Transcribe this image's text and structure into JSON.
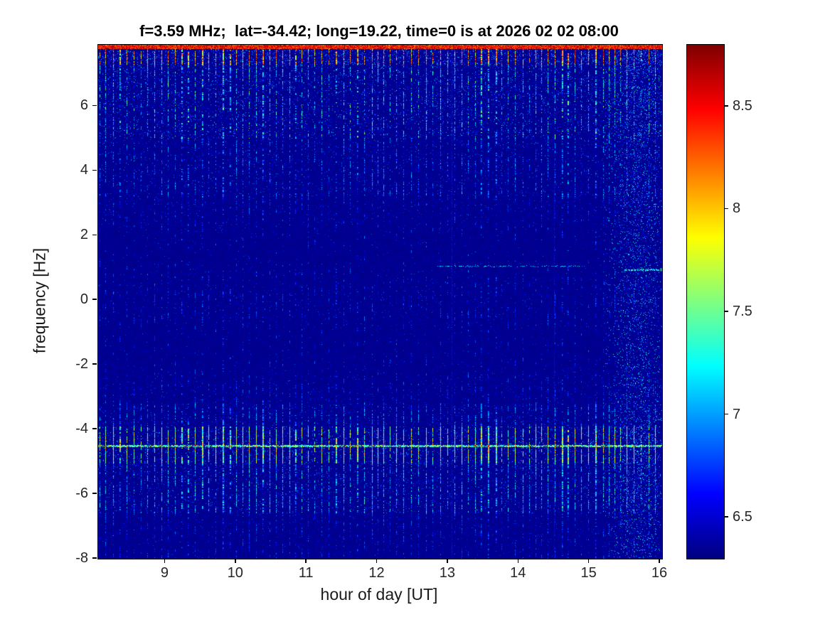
{
  "chart_data": {
    "type": "heatmap",
    "title": "f=3.59 MHz;  lat=-34.42; long=19.22, time=0 is at 2026 02 02 08:00",
    "xlabel": "hour of day [UT]",
    "ylabel": "frequency [Hz]",
    "colormap": "jet",
    "colorbar_position": "right",
    "xlim": [
      8.05,
      16.03
    ],
    "ylim": [
      -8,
      7.9
    ],
    "clim": [
      6.3,
      8.8
    ],
    "x_ticks": [
      9,
      10,
      11,
      12,
      13,
      14,
      15,
      16
    ],
    "y_ticks": [
      -8,
      -6,
      -4,
      -2,
      0,
      2,
      4,
      6
    ],
    "colorbar_ticks": [
      6.5,
      7,
      7.5,
      8,
      8.5
    ],
    "seed": 42,
    "stripes": {
      "period_hours": 0.095,
      "jitter": 0.3,
      "start_offset": 0.02,
      "wide_prob": 0.18
    },
    "bands": [
      {
        "f_min": 7.76,
        "f_max": 8.0,
        "solid": true,
        "stripe_prob": 1.0,
        "v_lo": 8.15,
        "v_hi": 8.8,
        "speckle_p": 0.0,
        "speckle_v": 6.5
      },
      {
        "f_min": 7.28,
        "f_max": 7.76,
        "solid": false,
        "stripe_prob": 0.92,
        "v_lo": 7.55,
        "v_hi": 8.85,
        "speckle_p": 0.18,
        "speckle_v": 7.2
      },
      {
        "f_min": 5.0,
        "f_max": 7.28,
        "solid": false,
        "stripe_prob": 0.68,
        "v_lo": 6.6,
        "v_hi": 7.75,
        "speckle_p": 0.09,
        "speckle_v": 7.1,
        "taper": true
      },
      {
        "f_min": 3.2,
        "f_max": 5.0,
        "solid": false,
        "stripe_prob": 0.42,
        "v_lo": 6.5,
        "v_hi": 7.25,
        "speckle_p": 0.05,
        "speckle_v": 6.95
      },
      {
        "f_min": -3.2,
        "f_max": 3.2,
        "solid": false,
        "stripe_prob": 0.24,
        "v_lo": 6.45,
        "v_hi": 7.0,
        "speckle_p": 0.025,
        "speckle_v": 6.85,
        "modulate": true
      },
      {
        "f_min": -3.9,
        "f_max": -3.2,
        "solid": false,
        "stripe_prob": 0.5,
        "v_lo": 6.55,
        "v_hi": 7.3,
        "speckle_p": 0.05,
        "speckle_v": 6.9
      },
      {
        "f_min": -5.05,
        "f_max": -3.9,
        "solid": false,
        "stripe_prob": 0.88,
        "v_lo": 7.1,
        "v_hi": 8.55,
        "speckle_p": 0.09,
        "speckle_v": 7.2,
        "envelope": true
      },
      {
        "f_min": -6.6,
        "f_max": -5.05,
        "solid": false,
        "stripe_prob": 0.62,
        "v_lo": 6.6,
        "v_hi": 7.55,
        "speckle_p": 0.07,
        "speckle_v": 7.0
      },
      {
        "f_min": -8.0,
        "f_max": -6.6,
        "solid": false,
        "stripe_prob": 0.3,
        "v_lo": 6.45,
        "v_hi": 7.0,
        "speckle_p": 0.03,
        "speckle_v": 6.8
      }
    ],
    "features": {
      "hum_line": {
        "f": -4.5,
        "v_lo": 7.1,
        "v_hi": 8.2,
        "dash_v_lo": 8.25,
        "dash_v_hi": 8.8,
        "dash_prob": 0.33
      },
      "trace": {
        "f": 1.05,
        "x_start": 12.85,
        "x_end": 14.95,
        "prob": 0.5,
        "v_lo": 6.85,
        "v_hi": 7.35,
        "strong_f": 0.95,
        "strong_x_start": 15.5,
        "strong_x_end": 16.03,
        "strong_prob": 0.85,
        "strong_v_lo": 7.0,
        "strong_v_hi": 7.55
      },
      "right_noise": {
        "x_center": 15.7,
        "x_sigma": 0.28,
        "p_max": 0.22,
        "p_base": 0.04,
        "v_lo": 6.55,
        "v_hi": 7.45
      },
      "vertical_lines": [
        13.05,
        14.5
      ]
    }
  }
}
